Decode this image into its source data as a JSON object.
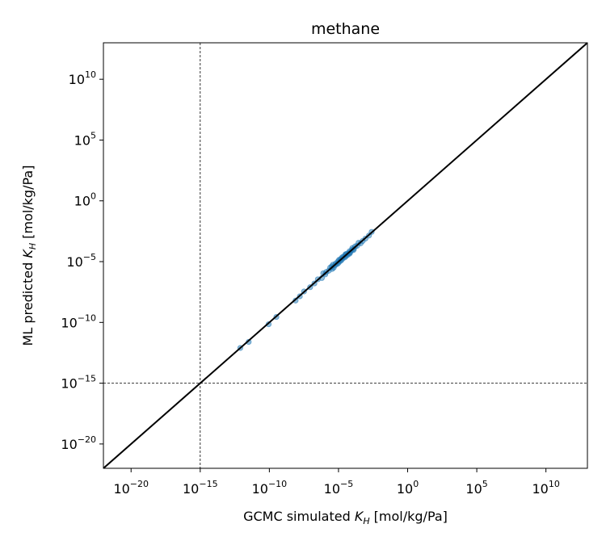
{
  "chart_data": {
    "type": "scatter",
    "title": "methane",
    "xlabel": {
      "prefix": "GCMC simulated ",
      "symbol": "K",
      "subscript": "H",
      "suffix": " [mol/kg/Pa]"
    },
    "ylabel": {
      "prefix": "ML predicted ",
      "symbol": "K",
      "subscript": "H",
      "suffix": " [mol/kg/Pa]"
    },
    "x_scale": "log",
    "y_scale": "log",
    "xlim": [
      1e-22,
      10000000000000.0
    ],
    "ylim": [
      1e-22,
      10000000000000.0
    ],
    "x_ticks": [
      {
        "base": "10",
        "exp": "−20",
        "value": 1e-20
      },
      {
        "base": "10",
        "exp": "−15",
        "value": 1e-15
      },
      {
        "base": "10",
        "exp": "−10",
        "value": 1e-10
      },
      {
        "base": "10",
        "exp": "−5",
        "value": 1e-05
      },
      {
        "base": "10",
        "exp": "0",
        "value": 1
      },
      {
        "base": "10",
        "exp": "5",
        "value": 100000.0
      },
      {
        "base": "10",
        "exp": "10",
        "value": 10000000000.0
      }
    ],
    "y_ticks": [
      {
        "base": "10",
        "exp": "−20",
        "value": 1e-20
      },
      {
        "base": "10",
        "exp": "−15",
        "value": 1e-15
      },
      {
        "base": "10",
        "exp": "−10",
        "value": 1e-10
      },
      {
        "base": "10",
        "exp": "−5",
        "value": 1e-05
      },
      {
        "base": "10",
        "exp": "0",
        "value": 1
      },
      {
        "base": "10",
        "exp": "5",
        "value": 100000.0
      },
      {
        "base": "10",
        "exp": "10",
        "value": 10000000000.0
      }
    ],
    "parity_line": {
      "from": 1e-22,
      "to": 10000000000000.0,
      "color": "#000000"
    },
    "threshold_lines": {
      "x": 1e-15,
      "y": 1e-15,
      "style": "dashed",
      "color": "#000000"
    },
    "point_color": "#1f77b4",
    "points": [
      {
        "x": 7.9e-13,
        "y": 7.9e-13
      },
      {
        "x": 3.2e-12,
        "y": 2.5e-12
      },
      {
        "x": 8.9e-11,
        "y": 7.1e-11
      },
      {
        "x": 3.2e-10,
        "y": 2.8e-10
      },
      {
        "x": 7.9e-09,
        "y": 6.3e-09
      },
      {
        "x": 1.6e-08,
        "y": 1.4e-08
      },
      {
        "x": 3.2e-08,
        "y": 3.5e-08
      },
      {
        "x": 8.9e-08,
        "y": 7.9e-08
      },
      {
        "x": 1.8e-07,
        "y": 1.6e-07
      },
      {
        "x": 3.2e-07,
        "y": 3.5e-07
      },
      {
        "x": 6.3e-07,
        "y": 4.5e-07
      },
      {
        "x": 1.1e-06,
        "y": 8.9e-07
      },
      {
        "x": 1.3e-06,
        "y": 1.4e-06
      },
      {
        "x": 2e-06,
        "y": 1.8e-06
      },
      {
        "x": 3.5e-06,
        "y": 2.5e-06
      },
      {
        "x": 3.2e-06,
        "y": 4e-06
      },
      {
        "x": 4.5e-06,
        "y": 3.2e-06
      },
      {
        "x": 5.6e-06,
        "y": 5e-06
      },
      {
        "x": 6.3e-06,
        "y": 7.1e-06
      },
      {
        "x": 7.9e-06,
        "y": 6.3e-06
      },
      {
        "x": 8.9e-06,
        "y": 1e-05
      },
      {
        "x": 1e-05,
        "y": 7.9e-06
      },
      {
        "x": 1.3e-05,
        "y": 1.1e-05
      },
      {
        "x": 1.4e-05,
        "y": 1.6e-05
      },
      {
        "x": 1.6e-05,
        "y": 1.3e-05
      },
      {
        "x": 2e-05,
        "y": 1.8e-05
      },
      {
        "x": 2.2e-05,
        "y": 2.5e-05
      },
      {
        "x": 2.8e-05,
        "y": 2.2e-05
      },
      {
        "x": 3.2e-05,
        "y": 3.5e-05
      },
      {
        "x": 3.5e-05,
        "y": 2.8e-05
      },
      {
        "x": 4e-05,
        "y": 4.5e-05
      },
      {
        "x": 4.5e-05,
        "y": 3.5e-05
      },
      {
        "x": 5.6e-05,
        "y": 5e-05
      },
      {
        "x": 6.3e-05,
        "y": 7.1e-05
      },
      {
        "x": 7.1e-05,
        "y": 5.6e-05
      },
      {
        "x": 8.9e-05,
        "y": 8.9e-05
      },
      {
        "x": 0.0001,
        "y": 0.00013
      },
      {
        "x": 0.00013,
        "y": 0.00011
      },
      {
        "x": 0.00016,
        "y": 0.00018
      },
      {
        "x": 0.00022,
        "y": 0.0002
      },
      {
        "x": 0.00028,
        "y": 0.00035
      },
      {
        "x": 0.0004,
        "y": 0.00032
      },
      {
        "x": 0.00056,
        "y": 0.0005
      },
      {
        "x": 0.00089,
        "y": 0.00079
      },
      {
        "x": 0.0016,
        "y": 0.0014
      },
      {
        "x": 0.0025,
        "y": 0.0028
      },
      {
        "x": 1.1e-05,
        "y": 1.4e-05
      },
      {
        "x": 1.8e-05,
        "y": 2.2e-05
      },
      {
        "x": 2.5e-06,
        "y": 3.2e-06
      },
      {
        "x": 4e-06,
        "y": 5.6e-06
      },
      {
        "x": 6.3e-05,
        "y": 4.5e-05
      },
      {
        "x": 0.00012,
        "y": 8.9e-05
      },
      {
        "x": 7.9e-07,
        "y": 1.1e-06
      },
      {
        "x": 3.2e-05,
        "y": 4e-05
      }
    ]
  }
}
